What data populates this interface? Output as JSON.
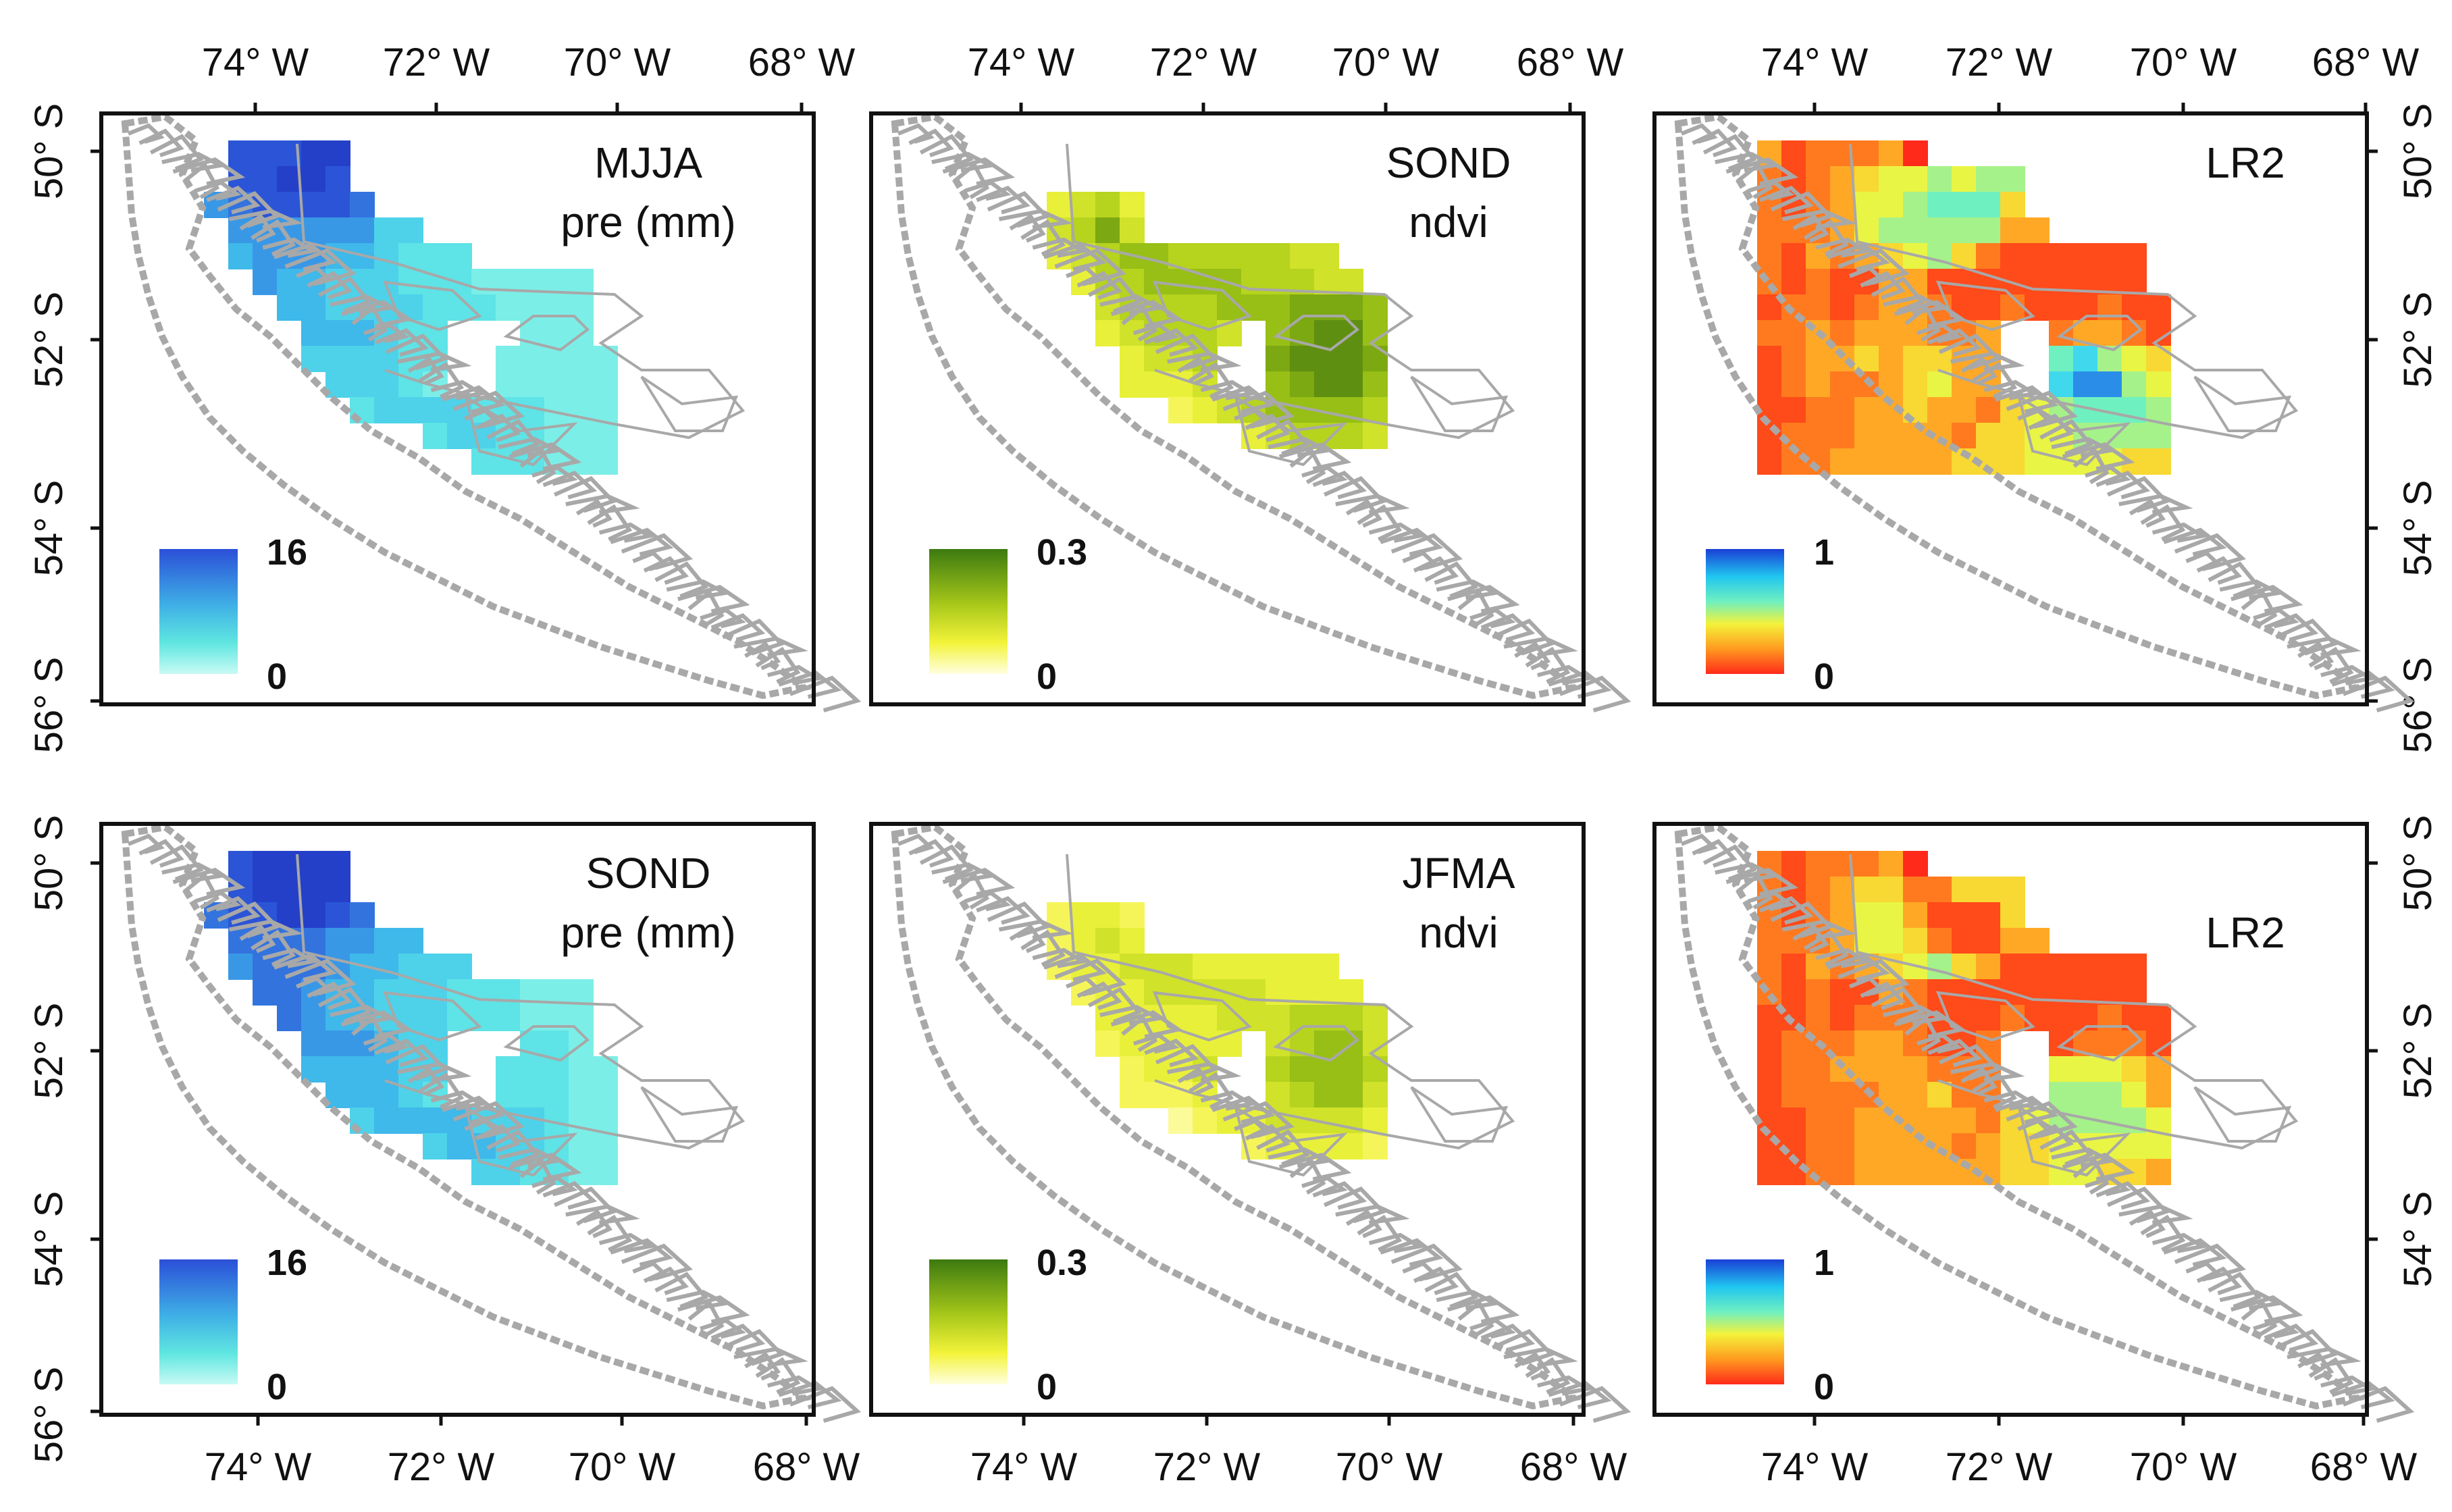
{
  "figure": {
    "x_ticks": [
      "74° W",
      "72° W",
      "70° W",
      "68° W"
    ],
    "y_ticks": [
      "50° S",
      "52° S",
      "54° S",
      "56° S"
    ]
  },
  "panels": [
    {
      "title_line1": "MJJA",
      "title_line2": "pre (mm)",
      "palette": "blues",
      "legend_max": "16",
      "legend_min": "0",
      "grid": [
        "00001111100000000000",
        "00001111100000000000",
        "00011111110000000000",
        "00001111111100000000",
        "00001111111111000000",
        "00000111111111111110",
        "00000011111111111110",
        "00000001111110001110",
        "00000001111110011111",
        "00000000111110011111",
        "00000000011111111111",
        "00000000000011111111",
        "00000000000000111111"
      ],
      "values": [
        "00008889900000000000",
        "00008899800000000000",
        "00067888870000000000",
        "00006666664400000000",
        "00005666554333000000",
        "00000655444333222220",
        "00000055444433322220",
        "00000005554330002220",
        "00000004444330022222",
        "00000000444320022222",
        "00000000034444333222",
        "00000000000034433222",
        "00000000000000333222"
      ]
    },
    {
      "title_line1": "SOND",
      "title_line2": "ndvi",
      "palette": "greens",
      "legend_max": "0.3",
      "legend_min": "0",
      "grid": [
        "00000000000000000000",
        "00000000000000000000",
        "00000011110000000000",
        "00000011110000000000",
        "00000011111111111100",
        "00000001111111111110",
        "00000000111111111111",
        "00000000111111011111",
        "00000000011110011111",
        "00000000011110011111",
        "00000000000111111111",
        "00000000000000111111",
        "00000000000000000000"
      ],
      "values": [
        "00000000000000000000",
        "00000000000000000000",
        "00000034530000000000",
        "00000045740000000000",
        "00000034566555554400",
        "00000003556666555440",
        "00000000455556667776",
        "00000000345554067886",
        "00000000034450078887",
        "00000000033340067886",
        "00000000000234566665",
        "00000000000000345554",
        "00000000000000000000"
      ]
    },
    {
      "title_line1": "LR2",
      "title_line2": "",
      "palette": "rainbow",
      "legend_max": "1",
      "legend_min": "0",
      "grid": [
        "00011111110000000000",
        "00011111111111000000",
        "00011111111111000000",
        "00011111111111100000",
        "00011111111111111110",
        "00011111111111111110",
        "00011111111111111111",
        "00011111111110011111",
        "00011111111110011111",
        "00011111111110011111",
        "00011111111111111111",
        "00011111111111111111",
        "00011111111111111111"
      ],
      "values": [
        "00031222300000000000",
        "00021234556566000000",
        "00021235567774000000",
        "00022235666663300000",
        "00021323456421111110",
        "00021211331111111110",
        "00012212332112111211",
        "00022323332230023321",
        "00012334344330078654",
        "00012322345330089965",
        "00011223343324567776",
        "00012223333244556666",
        "00012233333444555544"
      ]
    },
    {
      "title_line1": "SOND",
      "title_line2": "pre (mm)",
      "palette": "blues",
      "legend_max": "16",
      "legend_min": "0",
      "grid": [
        "00001111100000000000",
        "00001111100000000000",
        "00011111110000000000",
        "00001111111100000000",
        "00001111111111000000",
        "00000111111111111110",
        "00000011111111111110",
        "00000001111110001110",
        "00000001111110011111",
        "00000000111110011111",
        "00000000011111111111",
        "00000000000011111111",
        "00000000000000111111"
      ],
      "values": [
        "00008999900000000000",
        "00008999900000000000",
        "00078899870000000000",
        "00007777665500000000",
        "00006777655444000000",
        "00000776554443332220",
        "00000076554443332220",
        "00000006665440003320",
        "00000005555440033322",
        "00000000555430033322",
        "00000000045555444322",
        "00000000000045544322",
        "00000000000000443322"
      ]
    },
    {
      "title_line1": "JFMA",
      "title_line2": "ndvi",
      "palette": "greens",
      "legend_max": "0.3",
      "legend_min": "0",
      "grid": [
        "00000000000000000000",
        "00000000000000000000",
        "00000011110000000000",
        "00000011110000000000",
        "00000011111111111100",
        "00000001111111111110",
        "00000000111111111111",
        "00000000111111011111",
        "00000000011110011111",
        "00000000011110011111",
        "00000000000111111111",
        "00000000000000111111",
        "00000000000000000000"
      ],
      "values": [
        "00000000000000000000",
        "00000000000000000000",
        "00000023320000000000",
        "00000023430000000000",
        "00000023344433333300",
        "00000002334444433330",
        "00000000333334445554",
        "00000000233333045664",
        "00000000023340056665",
        "00000000022230045664",
        "00000000000123344443",
        "00000000000000233332",
        "00000000000000000000"
      ]
    },
    {
      "title_line1": "",
      "title_line2": "LR2",
      "palette": "rainbow",
      "legend_max": "1",
      "legend_min": "0",
      "grid": [
        "00011111110000000000",
        "00011111111111000000",
        "00011111111111000000",
        "00011111111111100000",
        "00011111111111111110",
        "00011111111111111110",
        "00011111111111111111",
        "00011111111110011111",
        "00011111111110011111",
        "00011111111110011111",
        "00011111111111111111",
        "00011111111111111111",
        "00011111111111111111"
      ],
      "values": [
        "00021222300000000000",
        "00021234422444000000",
        "00021235531114000000",
        "00022235542113300000",
        "00021323456431111110",
        "00021211321111111110",
        "00011212221112111211",
        "00012223321120012221",
        "00012233332220055543",
        "00012222334220066653",
        "00011223333324566665",
        "00011223333234455555",
        "00011223333334455443"
      ]
    }
  ]
}
